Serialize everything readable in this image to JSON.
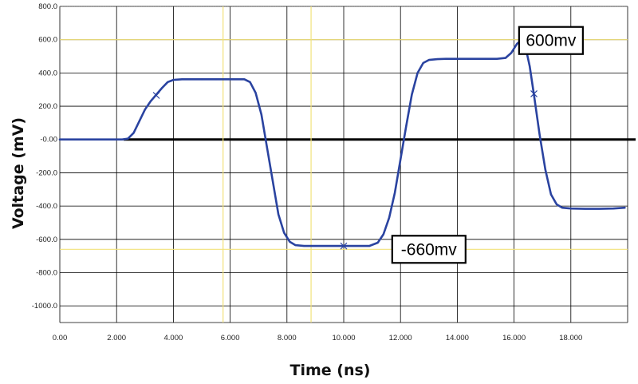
{
  "chart_data": {
    "type": "line",
    "xlabel": "Time (ns)",
    "ylabel": "Voltage (mV)",
    "xlim": [
      0,
      20
    ],
    "ylim": [
      -1100,
      800
    ],
    "x_ticks": [
      0,
      2,
      4,
      6,
      8,
      10,
      12,
      14,
      16,
      18
    ],
    "x_tick_labels": [
      "0.00",
      "2.000",
      "4.000",
      "6.000",
      "8.000",
      "10.000",
      "12.000",
      "14.000",
      "16.000",
      "18.000"
    ],
    "y_ticks": [
      800,
      600,
      400,
      200,
      0,
      -200,
      -400,
      -600,
      -800,
      -1000
    ],
    "y_tick_labels": [
      "800.0",
      "600.0",
      "400.0",
      "200.0",
      "-0.00",
      "-200.0",
      "-400.0",
      "-600.0",
      "-800.0",
      "-1000.0"
    ],
    "grid": true,
    "colors": {
      "series": "#2a43a0",
      "grid": "#000000",
      "zero_line": "#000000",
      "cursor": "#f2e27a",
      "background": "#ffffff"
    },
    "series": [
      {
        "x": [
          0,
          2.2,
          2.4,
          2.6,
          2.8,
          3.0,
          3.2,
          3.4,
          3.6,
          3.8,
          4.0,
          4.3,
          4.6,
          5.0,
          5.5,
          6.0,
          6.5,
          6.7,
          6.9,
          7.1,
          7.3,
          7.5,
          7.7,
          7.9,
          8.1,
          8.3,
          8.6,
          9.0,
          10.0,
          10.9,
          11.2,
          11.4,
          11.6,
          11.8,
          12.0,
          12.2,
          12.4,
          12.6,
          12.8,
          13.0,
          13.3,
          13.6,
          14.0,
          14.5,
          15.0,
          15.4,
          15.7,
          15.9,
          16.1,
          16.25,
          16.4,
          16.55,
          16.7,
          16.9,
          17.1,
          17.3,
          17.5,
          17.7,
          18.0,
          18.5,
          19.0,
          19.5,
          19.9
        ],
        "y": [
          0,
          0,
          5,
          40,
          110,
          180,
          230,
          270,
          310,
          345,
          358,
          362,
          362,
          362,
          362,
          362,
          362,
          345,
          280,
          150,
          -50,
          -250,
          -450,
          -560,
          -615,
          -635,
          -640,
          -640,
          -640,
          -640,
          -620,
          -570,
          -470,
          -320,
          -120,
          80,
          270,
          400,
          460,
          478,
          483,
          485,
          485,
          485,
          485,
          485,
          490,
          520,
          575,
          595,
          560,
          440,
          270,
          30,
          -180,
          -330,
          -390,
          -410,
          -415,
          -417,
          -417,
          -415,
          -410
        ]
      }
    ],
    "markers": [
      {
        "x": 3.4,
        "y": 265
      },
      {
        "x": 10.0,
        "y": -640
      },
      {
        "x": 16.7,
        "y": 275
      }
    ],
    "reference_lines": {
      "horizontal": [
        0,
        600,
        -660
      ],
      "vertical": [
        5.75,
        8.85
      ]
    },
    "annotations": [
      {
        "text": "600mv",
        "x": 17.3,
        "y": 595
      },
      {
        "text": "-660mv",
        "x": 13.0,
        "y": -660
      }
    ]
  }
}
